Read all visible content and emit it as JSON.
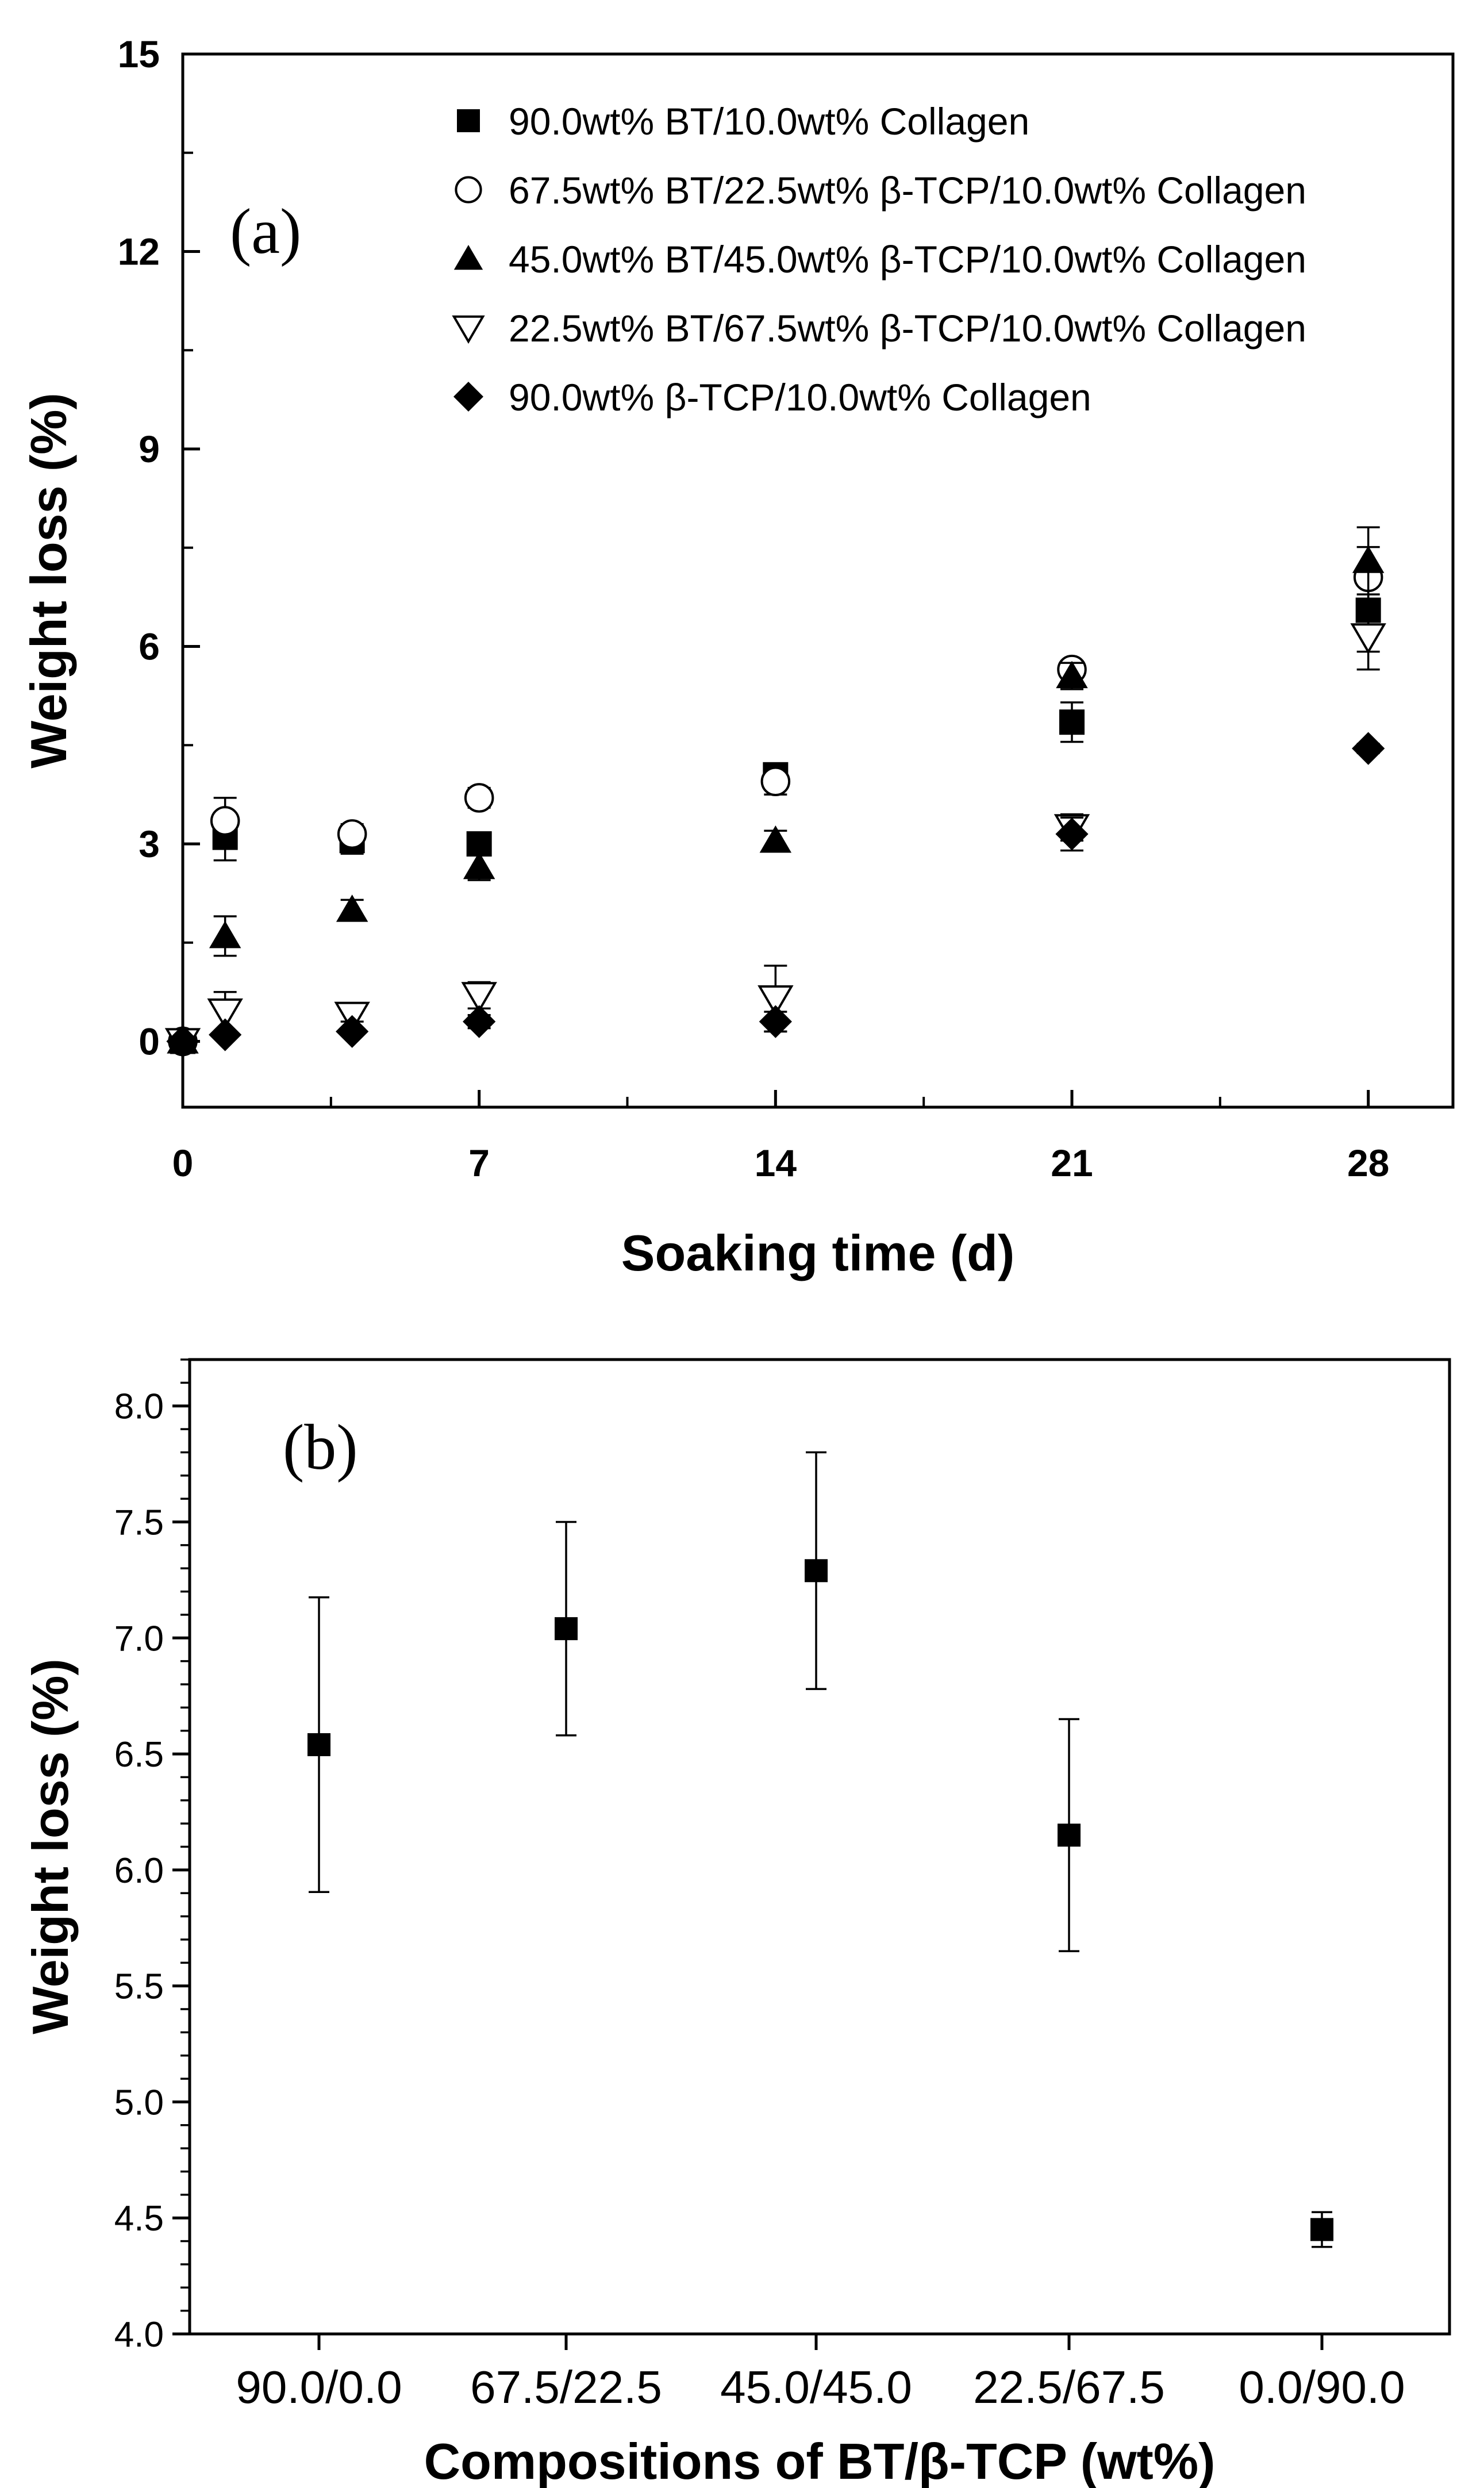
{
  "chart_data": [
    {
      "panel_label": "(a)",
      "type": "scatter",
      "xlabel": "Soaking time (d)",
      "ylabel": "Weight loss (%)",
      "xlim": [
        0,
        30
      ],
      "ylim": [
        -1,
        15
      ],
      "xticks": [
        0,
        7,
        14,
        21,
        28
      ],
      "yticks": [
        0,
        3,
        6,
        9,
        12,
        15
      ],
      "x_tick_labels": [
        "0",
        "7",
        "14",
        "21",
        "28"
      ],
      "y_tick_labels": [
        "0",
        "3",
        "6",
        "9",
        "12",
        "15"
      ],
      "legend_position": "top-right",
      "series": [
        {
          "name": "90.0wt% BT/10.0wt% Collagen",
          "marker": "square-filled",
          "points": [
            {
              "x": 0,
              "y": 0,
              "err": 0
            },
            {
              "x": 1,
              "y": 3.1,
              "err": 0.35
            },
            {
              "x": 4,
              "y": 3.05,
              "err": 0.2
            },
            {
              "x": 7,
              "y": 3.0,
              "err": 0.15
            },
            {
              "x": 14,
              "y": 4.05,
              "err": 0.15
            },
            {
              "x": 21,
              "y": 4.85,
              "err": 0.3
            },
            {
              "x": 28,
              "y": 6.55,
              "err": 0.63
            }
          ]
        },
        {
          "name": "67.5wt% BT/22.5wt% β-TCP/10.0wt% Collagen",
          "marker": "circle-open",
          "points": [
            {
              "x": 0,
              "y": 0,
              "err": 0
            },
            {
              "x": 1,
              "y": 3.35,
              "err": 0.35
            },
            {
              "x": 4,
              "y": 3.15,
              "err": 0.15
            },
            {
              "x": 7,
              "y": 3.7,
              "err": 0.15
            },
            {
              "x": 14,
              "y": 3.95,
              "err": 0.2
            },
            {
              "x": 21,
              "y": 5.65,
              "err": 0.1
            },
            {
              "x": 28,
              "y": 7.05,
              "err": 0.46
            }
          ]
        },
        {
          "name": "45.0wt% BT/45.0wt% β-TCP/10.0wt% Collagen",
          "marker": "triangle-up-filled",
          "points": [
            {
              "x": 0,
              "y": 0,
              "err": 0
            },
            {
              "x": 1,
              "y": 1.6,
              "err": 0.3
            },
            {
              "x": 4,
              "y": 2.0,
              "err": 0.15
            },
            {
              "x": 7,
              "y": 2.65,
              "err": 0.2
            },
            {
              "x": 14,
              "y": 3.05,
              "err": 0.15
            },
            {
              "x": 21,
              "y": 5.55,
              "err": 0.2
            },
            {
              "x": 28,
              "y": 7.3,
              "err": 0.51
            }
          ]
        },
        {
          "name": "22.5wt% BT/67.5wt% β-TCP/10.0wt% Collagen",
          "marker": "triangle-down-open",
          "points": [
            {
              "x": 0,
              "y": 0,
              "err": 0
            },
            {
              "x": 1,
              "y": 0.45,
              "err": 0.3
            },
            {
              "x": 4,
              "y": 0.4,
              "err": 0.1
            },
            {
              "x": 7,
              "y": 0.7,
              "err": 0.2
            },
            {
              "x": 14,
              "y": 0.65,
              "err": 0.5
            },
            {
              "x": 21,
              "y": 3.25,
              "err": 0.2
            },
            {
              "x": 28,
              "y": 6.15,
              "err": 0.5
            }
          ]
        },
        {
          "name": "90.0wt% β-TCP/10.0wt% Collagen",
          "marker": "diamond-filled",
          "points": [
            {
              "x": 0,
              "y": 0,
              "err": 0
            },
            {
              "x": 1,
              "y": 0.1,
              "err": 0.05
            },
            {
              "x": 4,
              "y": 0.15,
              "err": 0.05
            },
            {
              "x": 7,
              "y": 0.3,
              "err": 0.1
            },
            {
              "x": 14,
              "y": 0.3,
              "err": 0.15
            },
            {
              "x": 21,
              "y": 3.15,
              "err": 0.25
            },
            {
              "x": 28,
              "y": 4.45,
              "err": 0.07
            }
          ]
        }
      ]
    },
    {
      "panel_label": "(b)",
      "type": "scatter",
      "xlabel": "Compositions of BT/β-TCP (wt%)",
      "ylabel": "Weight loss (%)",
      "categories": [
        "90.0/0.0",
        "67.5/22.5",
        "45.0/45.0",
        "22.5/67.5",
        "0.0/90.0"
      ],
      "ylim": [
        4.0,
        8.2
      ],
      "yticks": [
        4.0,
        4.5,
        5.0,
        5.5,
        6.0,
        6.5,
        7.0,
        7.5,
        8.0
      ],
      "y_tick_labels": [
        "4.0",
        "4.5",
        "5.0",
        "5.5",
        "6.0",
        "6.5",
        "7.0",
        "7.5",
        "8.0"
      ],
      "marker": "square-filled",
      "values": [
        6.54,
        7.04,
        7.29,
        6.15,
        4.45
      ],
      "err": [
        0.635,
        0.46,
        0.51,
        0.5,
        0.075
      ]
    }
  ]
}
